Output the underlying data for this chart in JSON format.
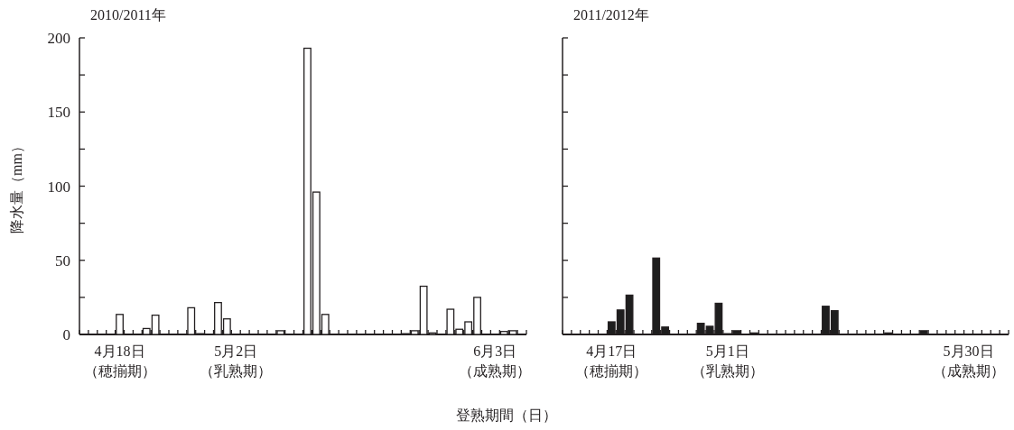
{
  "chart_data": [
    {
      "type": "bar",
      "title": "2010/2011年",
      "ylabel": "降水量（mm）",
      "xlabel": "登熟期間（日）",
      "color": "#ffffff",
      "categories": [
        null,
        null,
        null,
        null,
        "4月18日（穂揃期）",
        null,
        null,
        null,
        null,
        null,
        null,
        null,
        null,
        null,
        null,
        null,
        null,
        "5月2日（乳熟期）",
        null,
        null,
        null,
        null,
        null,
        null,
        null,
        null,
        null,
        null,
        null,
        null,
        null,
        null,
        null,
        null,
        null,
        null,
        null,
        null,
        null,
        null,
        null,
        null,
        null,
        null,
        null,
        null,
        "6月3日（成熟期）",
        null,
        null,
        null
      ],
      "values": [
        0,
        0,
        0,
        0,
        13.5,
        0,
        0,
        4,
        13,
        0,
        0,
        0,
        18,
        0.5,
        0,
        21.5,
        10.5,
        0,
        0,
        0,
        0,
        0,
        2.5,
        0,
        0,
        193,
        96,
        13.5,
        0,
        0,
        0,
        0,
        0,
        0,
        0,
        0,
        0.5,
        2.5,
        32.5,
        1,
        0,
        17,
        3.5,
        8.5,
        25,
        0,
        0,
        2,
        2.5,
        0
      ],
      "ylim": [
        0,
        200
      ],
      "yticks": [
        0,
        {
          "value": 25,
          "label": null
        },
        50,
        {
          "value": 75,
          "label": null
        },
        100,
        {
          "value": 125,
          "label": null
        },
        150,
        {
          "value": 175,
          "label": null
        },
        200
      ]
    },
    {
      "type": "bar",
      "title": "2011/2012年",
      "color": "#1e1e1e",
      "tick_labels": "x",
      "categories": [
        null,
        null,
        null,
        null,
        null,
        "4月17日（穂揃期）",
        null,
        null,
        null,
        null,
        null,
        null,
        null,
        null,
        null,
        null,
        null,
        null,
        "5月1日（乳熟期）",
        null,
        null,
        null,
        null,
        null,
        null,
        null,
        null,
        null,
        null,
        null,
        null,
        null,
        null,
        null,
        null,
        null,
        null,
        null,
        null,
        null,
        null,
        null,
        null,
        null,
        null,
        "5月30日（成熟期）",
        null,
        null,
        null,
        null
      ],
      "values": [
        0,
        0,
        0,
        0,
        0,
        8.5,
        16.5,
        26.5,
        0,
        0,
        51.5,
        5,
        0,
        0,
        0,
        7.5,
        5.5,
        21,
        0.5,
        2.5,
        0,
        1,
        0,
        0,
        0,
        0,
        0,
        0,
        0,
        19,
        16,
        0,
        0,
        0,
        0,
        0,
        1,
        0,
        0,
        0,
        2.5,
        0,
        0,
        0,
        0,
        0,
        0,
        0,
        0,
        0
      ],
      "ylim": [
        0,
        200
      ],
      "yticks": [
        0,
        {
          "value": 25,
          "label": null
        },
        50,
        {
          "value": 75,
          "label": null
        },
        100,
        {
          "value": 125,
          "label": null
        },
        150,
        {
          "value": 175,
          "label": null
        },
        200
      ]
    }
  ]
}
